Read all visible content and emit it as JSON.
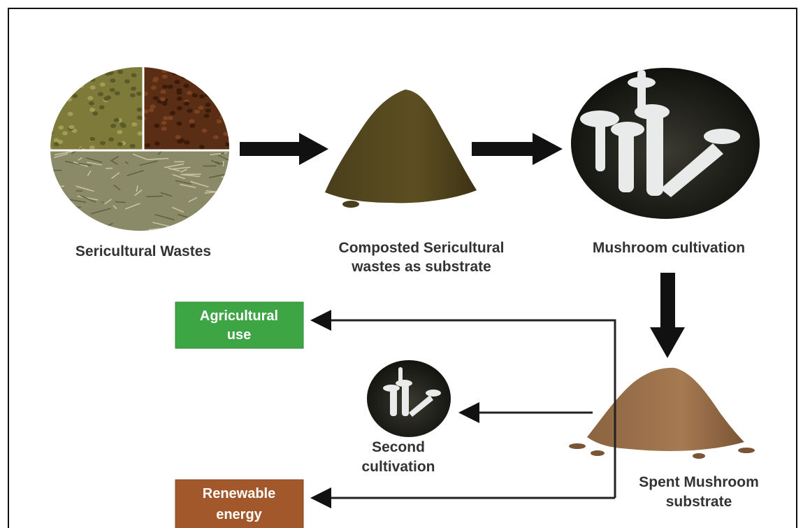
{
  "nodes": [
    {
      "id": "sericultural-wastes",
      "lines": [
        "Sericultural Wastes"
      ]
    },
    {
      "id": "composted",
      "lines": [
        "Composted Sericultural",
        "wastes as substrate"
      ]
    },
    {
      "id": "mushroom-cultivation",
      "lines": [
        "Mushroom cultivation"
      ]
    },
    {
      "id": "spent-substrate",
      "lines": [
        "Spent Mushroom",
        "substrate"
      ]
    },
    {
      "id": "second-cultivation",
      "lines": [
        "Second",
        "cultivation"
      ]
    },
    {
      "id": "agricultural-use",
      "lines": [
        "Agricultural",
        "use"
      ]
    },
    {
      "id": "renewable-energy",
      "lines": [
        "Renewable",
        "energy"
      ]
    }
  ]
}
